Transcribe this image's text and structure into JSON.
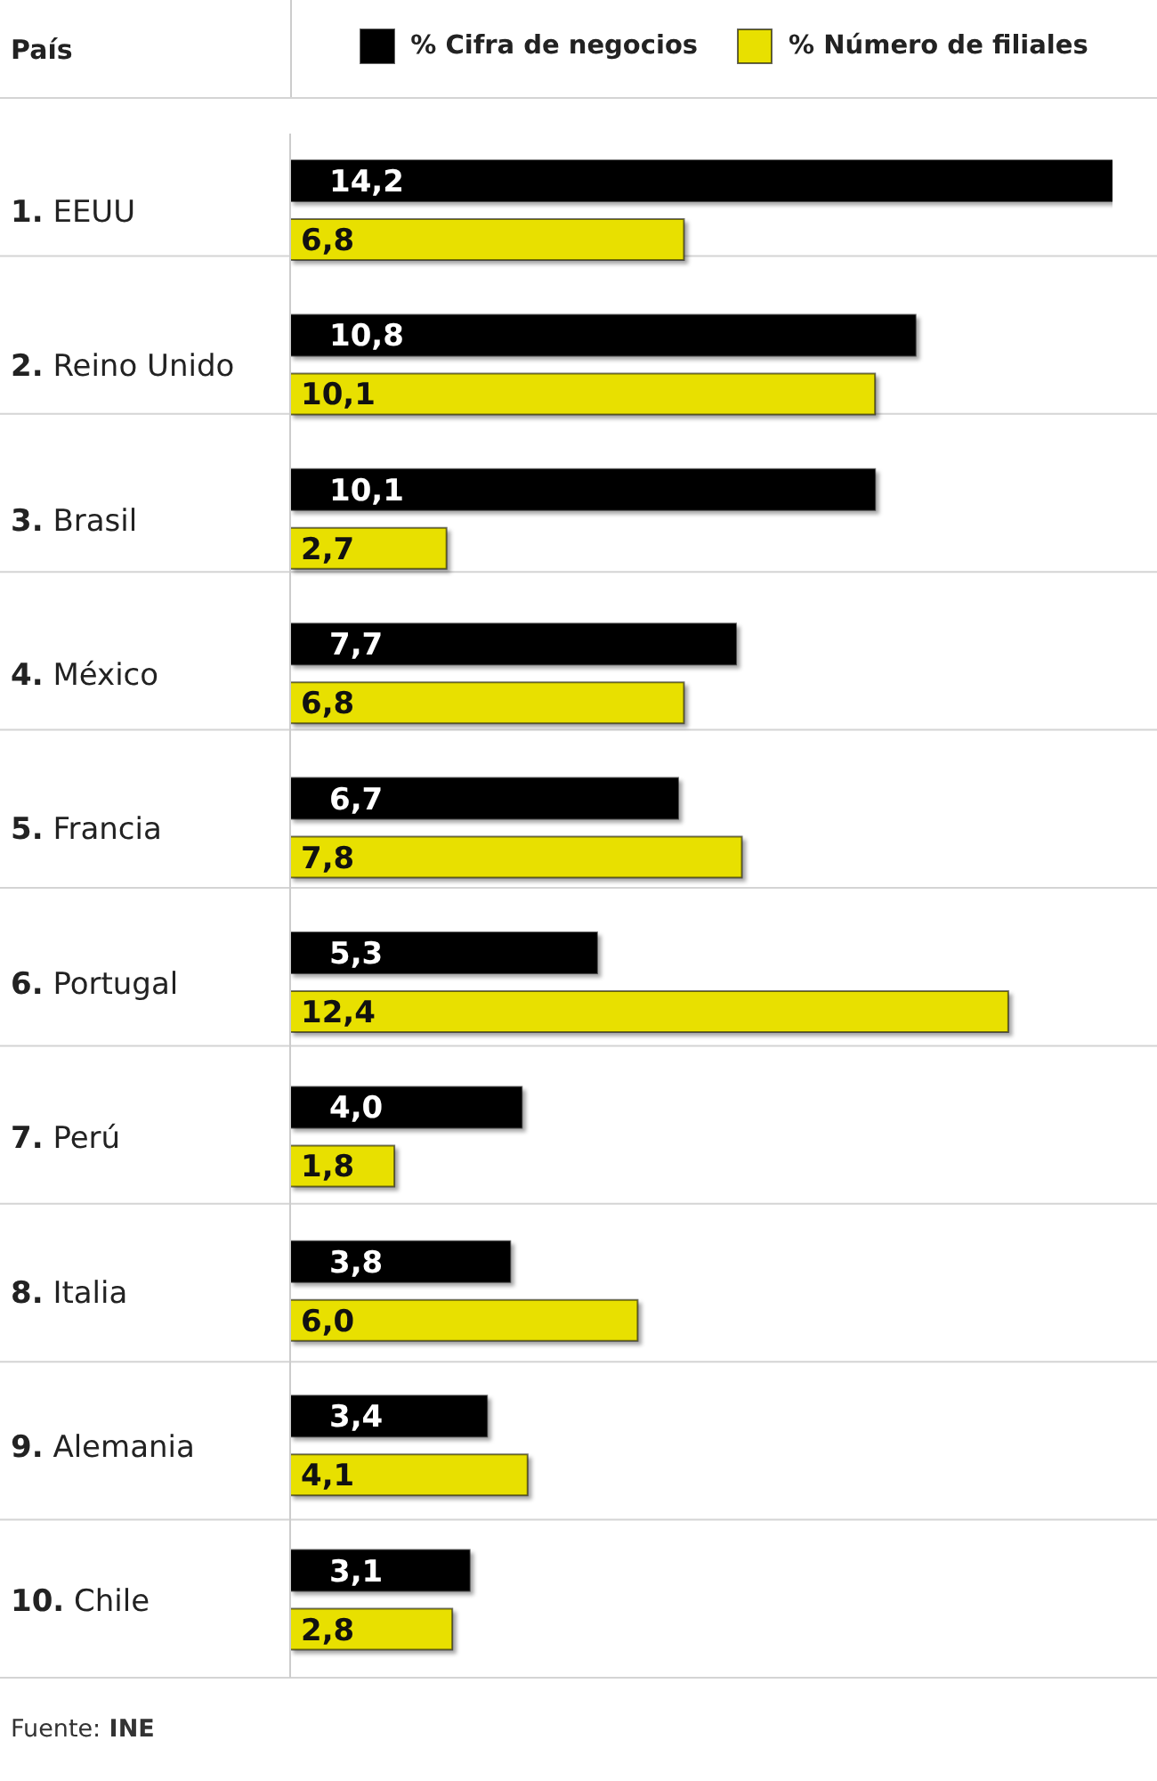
{
  "chart_data": {
    "type": "bar",
    "orientation": "horizontal",
    "ylabel": "País",
    "categories": [
      "1. EEUU",
      "2. Reino Unido",
      "3. Brasil",
      "4. México",
      "5. Francia",
      "6. Portugal",
      "7. Perú",
      "8. Italia",
      "9. Alemania",
      "10. Chile"
    ],
    "series": [
      {
        "name": "% Cifra de negocios",
        "color": "#000000",
        "values": [
          14.2,
          10.8,
          10.1,
          7.7,
          6.7,
          5.3,
          4.0,
          3.8,
          3.4,
          3.1
        ],
        "value_labels": [
          "14,2",
          "10,8",
          "10,1",
          "7,7",
          "6,7",
          "5,3",
          "4,0",
          "3,8",
          "3,4",
          "3,1"
        ]
      },
      {
        "name": "% Número de filiales",
        "color": "#e8e000",
        "values": [
          6.8,
          10.1,
          2.7,
          6.8,
          7.8,
          12.4,
          1.8,
          6.0,
          4.1,
          2.8
        ],
        "value_labels": [
          "6,8",
          "10,1",
          "2,7",
          "6,8",
          "7,8",
          "12,4",
          "1,8",
          "6,0",
          "4,1",
          "2,8"
        ]
      }
    ],
    "legend": "top",
    "grid": "y",
    "annotations": [
      "Fuente: INE"
    ]
  }
}
